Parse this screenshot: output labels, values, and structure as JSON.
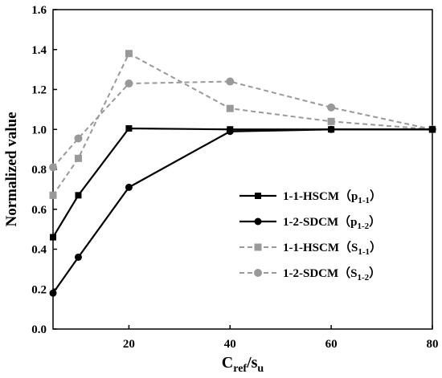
{
  "chart_data": {
    "type": "line",
    "xlabel": {
      "main": "C",
      "sub1": "ref",
      "mid": "/s",
      "sub2": "u"
    },
    "ylabel": "Normalized value",
    "xlim": [
      5,
      80
    ],
    "ylim": [
      0,
      1.6
    ],
    "xticks": [
      20,
      40,
      60,
      80
    ],
    "yticks": [
      0.0,
      0.2,
      0.4,
      0.6,
      0.8,
      1.0,
      1.2,
      1.4,
      1.6
    ],
    "ytick_labels": [
      "0.0",
      "0.2",
      "0.4",
      "0.6",
      "0.8",
      "1.0",
      "1.2",
      "1.4",
      "1.6"
    ],
    "legend_position": "center-right",
    "series": [
      {
        "name": "1-1-HSCM（p",
        "name_sub": "1-1",
        "name_close": "）",
        "color": "#000000",
        "marker": "square",
        "dash": false,
        "x": [
          5,
          10,
          20,
          40,
          60,
          80
        ],
        "y": [
          0.46,
          0.67,
          1.005,
          1.0,
          1.0,
          1.0
        ]
      },
      {
        "name": "1-2-SDCM（p",
        "name_sub": "1-2",
        "name_close": "）",
        "color": "#000000",
        "marker": "circle",
        "dash": false,
        "x": [
          5,
          10,
          20,
          40,
          60,
          80
        ],
        "y": [
          0.18,
          0.36,
          0.71,
          0.99,
          1.0,
          1.0
        ]
      },
      {
        "name": "1-1-HSCM（S",
        "name_sub": "1-1",
        "name_close": "）",
        "color": "#999999",
        "marker": "square",
        "dash": true,
        "x": [
          5,
          10,
          20,
          40,
          60,
          80
        ],
        "y": [
          0.67,
          0.855,
          1.38,
          1.105,
          1.04,
          1.0
        ]
      },
      {
        "name": "1-2-SDCM（S",
        "name_sub": "1-2",
        "name_close": "）",
        "color": "#999999",
        "marker": "circle",
        "dash": true,
        "x": [
          5,
          10,
          20,
          40,
          60,
          80
        ],
        "y": [
          0.81,
          0.955,
          1.23,
          1.24,
          1.11,
          1.0
        ]
      }
    ]
  }
}
